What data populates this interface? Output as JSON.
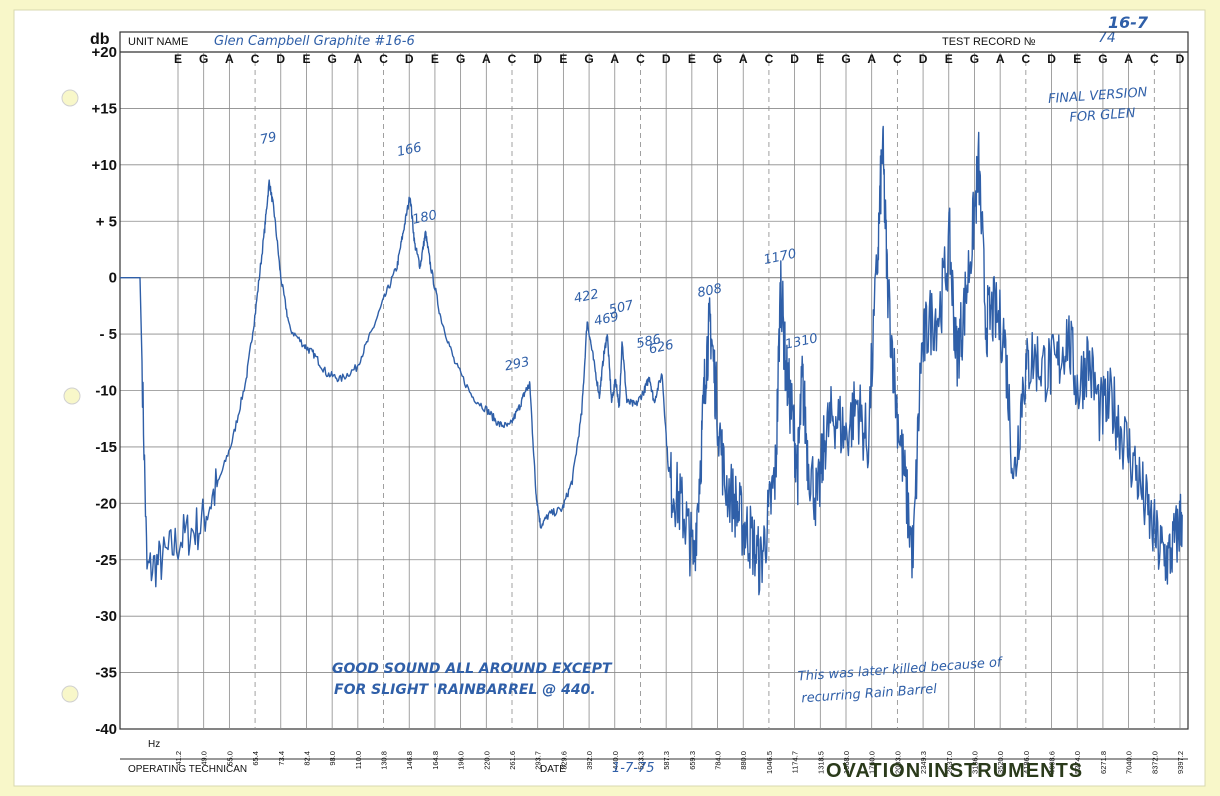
{
  "header": {
    "db_label": "db",
    "unit_name_label": "UNIT NAME",
    "unit_name_value": "Glen Campbell   Graphite #16-6",
    "test_record_label": "TEST RECORD №",
    "test_record_value": "74",
    "sheet_code": "16-7"
  },
  "footer": {
    "hz_label": "Hz",
    "technician_label": "OPERATING TECHNICAN",
    "date_label": "DATE",
    "date_value": "1-7-75",
    "brand": "OVATION INSTRUMENTS"
  },
  "notes": {
    "final_version_line1": "FINAL VERSION",
    "final_version_line2": "FOR GLEN",
    "comment_line1": "GOOD SOUND ALL AROUND EXCEPT",
    "comment_line2": "FOR SLIGHT 'RAINBARREL @ 440.",
    "later_note_line1": "This was later killed because of",
    "later_note_line2": "recurring Rain Barrel"
  },
  "colors": {
    "paper": "#ffffff",
    "border": "#f8f7c9",
    "grid": "#8a8a8a",
    "trace": "#2f5fa8",
    "brand": "#2a3a1a"
  },
  "chart_data": {
    "type": "line",
    "title": "",
    "xlabel": "Hz",
    "ylabel": "db",
    "x_scale": "log",
    "xlim": [
      36,
      10000
    ],
    "ylim": [
      -40,
      20
    ],
    "grid": true,
    "y_ticks": [
      "+20",
      "+15",
      "+10",
      "+ 5",
      "0",
      "- 5",
      "-10",
      "-15",
      "-20",
      "-25",
      "-30",
      "-35",
      "-40"
    ],
    "note_names": [
      "E",
      "G",
      "A",
      "C",
      "D",
      "E",
      "G",
      "A",
      "C",
      "D",
      "E",
      "G",
      "A",
      "C",
      "D",
      "E",
      "G",
      "A",
      "C",
      "D",
      "E",
      "G",
      "A",
      "C",
      "D",
      "E",
      "G",
      "A",
      "C",
      "D",
      "E",
      "G",
      "A",
      "C",
      "D",
      "E",
      "G",
      "A",
      "C",
      "D"
    ],
    "freq_labels": [
      "41.2",
      "49.0",
      "55.0",
      "65.4",
      "73.4",
      "82.4",
      "98.0",
      "110.0",
      "130.8",
      "146.8",
      "164.8",
      "196.0",
      "220.0",
      "261.6",
      "293.7",
      "329.6",
      "392.0",
      "440.0",
      "523.3",
      "587.3",
      "659.3",
      "784.0",
      "880.0",
      "1046.5",
      "1174.7",
      "1318.5",
      "1568.0",
      "1760.0",
      "2093.0",
      "2349.3",
      "2637.0",
      "3136.0",
      "3520.0",
      "4186.0",
      "4698.6",
      "5274.0",
      "6271.8",
      "7040.0",
      "8372.0",
      "9397.2"
    ],
    "peak_annotations": [
      "79",
      "166",
      "180",
      "293",
      "422",
      "469",
      "507",
      "586",
      "626",
      "808",
      "1170",
      "1310"
    ],
    "series": [
      {
        "values": [
          [
            36,
            0
          ],
          [
            40,
            0
          ],
          [
            41.5,
            -26
          ],
          [
            45,
            -25
          ],
          [
            50,
            -23
          ],
          [
            55,
            -22
          ],
          [
            60,
            -18.5
          ],
          [
            65,
            -14.5
          ],
          [
            70,
            -9
          ],
          [
            73.5,
            -3
          ],
          [
            77,
            4
          ],
          [
            79,
            8.5
          ],
          [
            81,
            6
          ],
          [
            84,
            0
          ],
          [
            88,
            -4.5
          ],
          [
            95,
            -6
          ],
          [
            100,
            -6.8
          ],
          [
            107,
            -8.5
          ],
          [
            115,
            -9
          ],
          [
            125,
            -8
          ],
          [
            135,
            -5
          ],
          [
            145,
            -1.8
          ],
          [
            155,
            1
          ],
          [
            160,
            4
          ],
          [
            166,
            7.3
          ],
          [
            170,
            3
          ],
          [
            175,
            1
          ],
          [
            180,
            4
          ],
          [
            185,
            1
          ],
          [
            195,
            -3.5
          ],
          [
            210,
            -7.5
          ],
          [
            230,
            -10.5
          ],
          [
            250,
            -11.8
          ],
          [
            265,
            -13
          ],
          [
            280,
            -13.2
          ],
          [
            295,
            -11.5
          ],
          [
            305,
            -10
          ],
          [
            312,
            -9.5
          ],
          [
            322,
            -19
          ],
          [
            330,
            -22
          ],
          [
            345,
            -21
          ],
          [
            370,
            -20.5
          ],
          [
            390,
            -18
          ],
          [
            410,
            -12
          ],
          [
            422,
            -3.8
          ],
          [
            435,
            -7
          ],
          [
            450,
            -10.5
          ],
          [
            460,
            -7
          ],
          [
            469,
            -5
          ],
          [
            480,
            -11
          ],
          [
            490,
            -9
          ],
          [
            500,
            -11.5
          ],
          [
            507,
            -5.5
          ],
          [
            520,
            -11
          ],
          [
            545,
            -11.3
          ],
          [
            570,
            -10
          ],
          [
            586,
            -8.8
          ],
          [
            600,
            -11
          ],
          [
            626,
            -8.5
          ],
          [
            650,
            -18
          ],
          [
            680,
            -19.5
          ],
          [
            710,
            -21.5
          ],
          [
            740,
            -25
          ],
          [
            770,
            -15
          ],
          [
            790,
            -7
          ],
          [
            808,
            -4
          ],
          [
            830,
            -10
          ],
          [
            870,
            -18
          ],
          [
            920,
            -20
          ],
          [
            960,
            -22
          ],
          [
            1000,
            -23
          ],
          [
            1050,
            -25.5
          ],
          [
            1100,
            -21
          ],
          [
            1140,
            -17
          ],
          [
            1170,
            0
          ],
          [
            1200,
            -8
          ],
          [
            1240,
            -12
          ],
          [
            1280,
            -17
          ],
          [
            1310,
            -9
          ],
          [
            1350,
            -16
          ],
          [
            1420,
            -20
          ],
          [
            1480,
            -14
          ],
          [
            1550,
            -12
          ],
          [
            1650,
            -14
          ],
          [
            1750,
            -11
          ],
          [
            1850,
            -15
          ],
          [
            1950,
            2
          ],
          [
            2000,
            12
          ],
          [
            2050,
            0
          ],
          [
            2150,
            -11
          ],
          [
            2250,
            -18
          ],
          [
            2350,
            -25
          ],
          [
            2450,
            -7
          ],
          [
            2550,
            -4
          ],
          [
            2700,
            -3
          ],
          [
            2850,
            3
          ],
          [
            2950,
            -7
          ],
          [
            3050,
            -4
          ],
          [
            3200,
            3
          ],
          [
            3320,
            10
          ],
          [
            3450,
            -4
          ],
          [
            3600,
            -3
          ],
          [
            3800,
            -5
          ],
          [
            4000,
            -18
          ],
          [
            4200,
            -9
          ],
          [
            4400,
            -7
          ],
          [
            4700,
            -8
          ],
          [
            5000,
            -8
          ],
          [
            5300,
            -5
          ],
          [
            5600,
            -10
          ],
          [
            5900,
            -7
          ],
          [
            6300,
            -12
          ],
          [
            6700,
            -11
          ],
          [
            7100,
            -14
          ],
          [
            7600,
            -17
          ],
          [
            8100,
            -21
          ],
          [
            8600,
            -24
          ],
          [
            9000,
            -25
          ],
          [
            9397,
            -23
          ],
          [
            9700,
            -21
          ]
        ]
      }
    ]
  }
}
